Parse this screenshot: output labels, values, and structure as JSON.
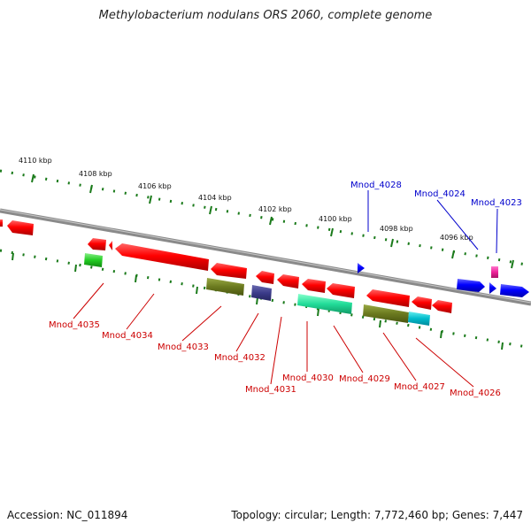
{
  "title": "Methylobacterium nodulans ORS 2060, complete genome",
  "footer": {
    "accession": "Accession: NC_011894",
    "topology": "Topology: circular; Length: 7,772,460 bp; Genes: 7,447"
  },
  "scale_labels": [
    "4110 kbp",
    "4108 kbp",
    "4106 kbp",
    "4104 kbp",
    "4102 kbp",
    "4100 kbp",
    "4098 kbp",
    "4096 kbp"
  ],
  "colors": {
    "reverse_label": "#cc0000",
    "forward_label": "#0000cc",
    "backbone": "#888888",
    "tick": "#1a7a1a"
  },
  "gene_labels": {
    "forward": [
      "Mnod_4028",
      "Mnod_4024",
      "Mnod_4023"
    ],
    "reverse": [
      "Mnod_4035",
      "Mnod_4034",
      "Mnod_4033",
      "Mnod_4032",
      "Mnod_4031",
      "Mnod_4030",
      "Mnod_4029",
      "Mnod_4027",
      "Mnod_4026"
    ]
  }
}
